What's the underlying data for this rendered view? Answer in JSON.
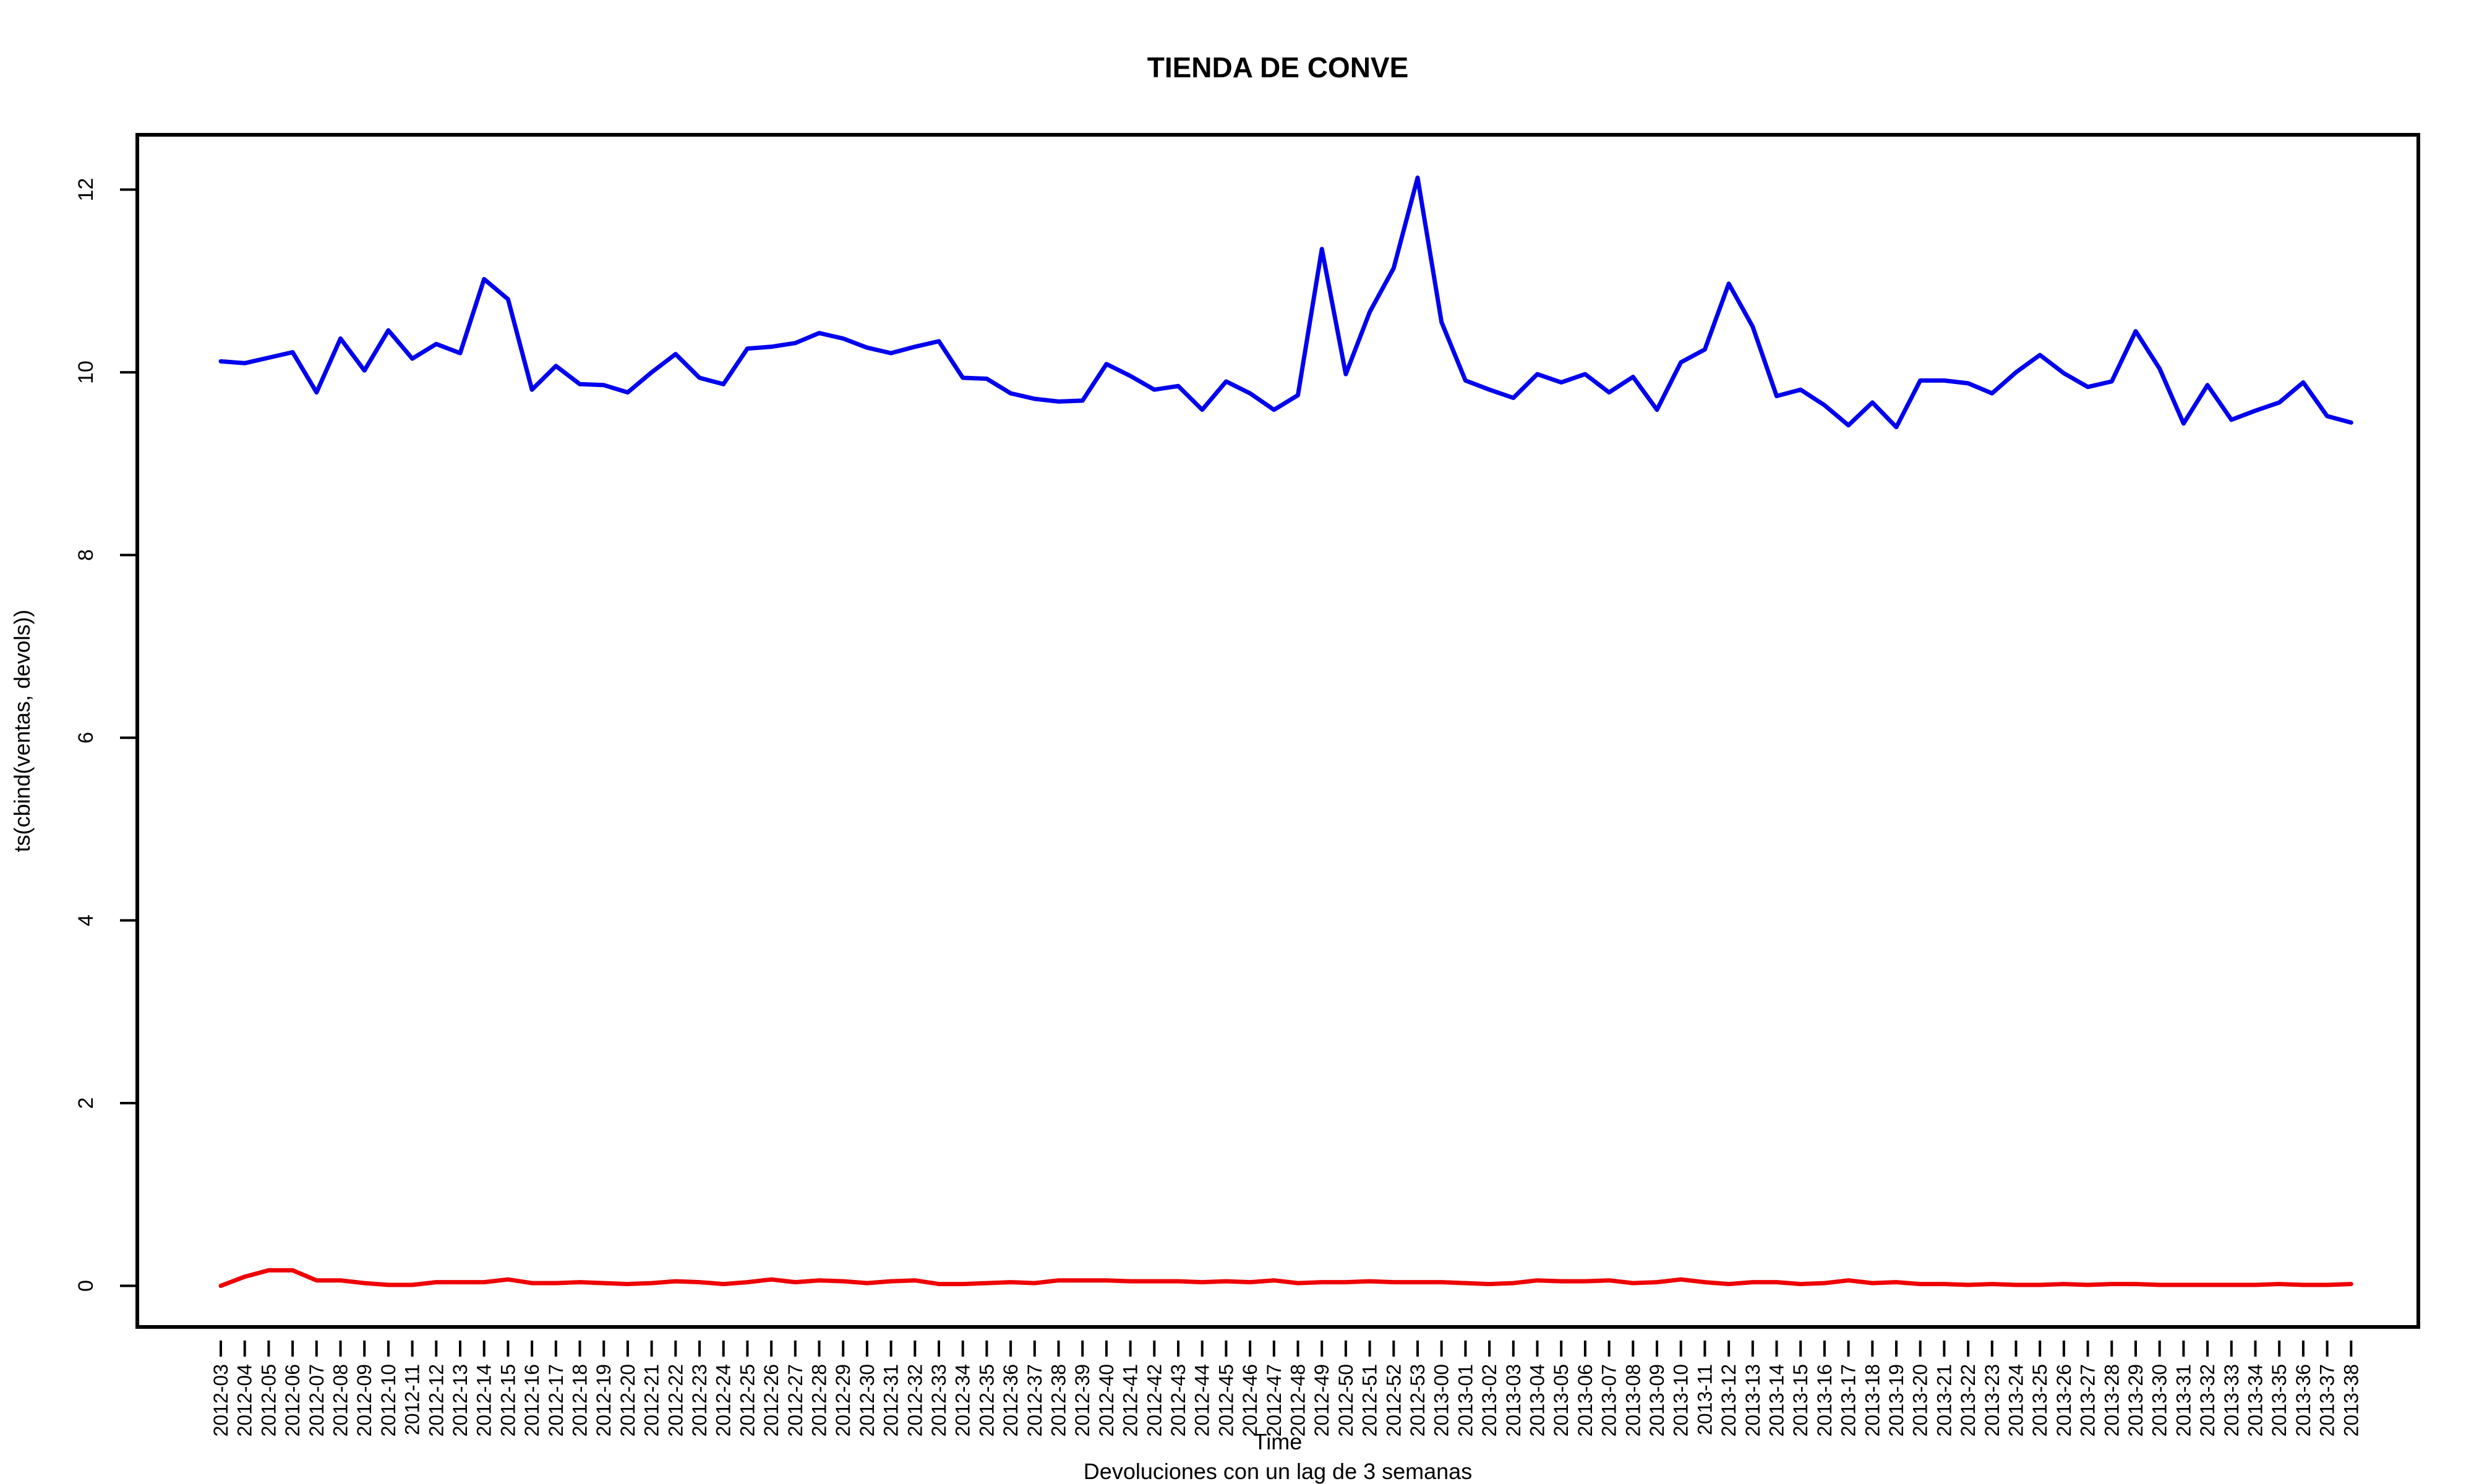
{
  "chart_data": {
    "type": "line",
    "title": "TIENDA DE CONVE",
    "xlabel": "Time",
    "ylabel": "ts(cbind(ventas, devols))",
    "subtitle": "Devoluciones con un lag de 3 semanas",
    "ylim": [
      -0.45,
      12.6
    ],
    "yticks": [
      0,
      2,
      4,
      6,
      8,
      10,
      12
    ],
    "grid": false,
    "categories": [
      "2012-03",
      "2012-04",
      "2012-05",
      "2012-06",
      "2012-07",
      "2012-08",
      "2012-09",
      "2012-10",
      "2012-11",
      "2012-12",
      "2012-13",
      "2012-14",
      "2012-15",
      "2012-16",
      "2012-17",
      "2012-18",
      "2012-19",
      "2012-20",
      "2012-21",
      "2012-22",
      "2012-23",
      "2012-24",
      "2012-25",
      "2012-26",
      "2012-27",
      "2012-28",
      "2012-29",
      "2012-30",
      "2012-31",
      "2012-32",
      "2012-33",
      "2012-34",
      "2012-35",
      "2012-36",
      "2012-37",
      "2012-38",
      "2012-39",
      "2012-40",
      "2012-41",
      "2012-42",
      "2012-43",
      "2012-44",
      "2012-45",
      "2012-46",
      "2012-47",
      "2012-48",
      "2012-49",
      "2012-50",
      "2012-51",
      "2012-52",
      "2012-53",
      "2013-00",
      "2013-01",
      "2013-02",
      "2013-03",
      "2013-04",
      "2013-05",
      "2013-06",
      "2013-07",
      "2013-08",
      "2013-09",
      "2013-10",
      "2013-11",
      "2013-12",
      "2013-13",
      "2013-14",
      "2013-15",
      "2013-16",
      "2013-17",
      "2013-18",
      "2013-19",
      "2013-20",
      "2013-21",
      "2013-22",
      "2013-23",
      "2013-24",
      "2013-25",
      "2013-26",
      "2013-27",
      "2013-28",
      "2013-29",
      "2013-30",
      "2013-31",
      "2013-32",
      "2013-33",
      "2013-34",
      "2013-35",
      "2013-36",
      "2013-37",
      "2013-38"
    ],
    "series": [
      {
        "color": "#0000ee",
        "values": [
          10.12,
          10.1,
          10.16,
          10.22,
          9.78,
          10.37,
          10.02,
          10.46,
          10.15,
          10.31,
          10.21,
          11.02,
          10.8,
          9.81,
          10.07,
          9.87,
          9.86,
          9.78,
          10.0,
          10.2,
          9.94,
          9.87,
          10.26,
          10.28,
          10.32,
          10.43,
          10.37,
          10.27,
          10.21,
          10.28,
          10.34,
          9.94,
          9.93,
          9.77,
          9.71,
          9.68,
          9.69,
          10.09,
          9.96,
          9.81,
          9.85,
          9.59,
          9.9,
          9.77,
          9.59,
          9.75,
          11.35,
          9.98,
          10.66,
          11.14,
          12.13,
          10.55,
          9.91,
          9.81,
          9.72,
          9.98,
          9.89,
          9.98,
          9.78,
          9.95,
          9.59,
          10.11,
          10.25,
          10.97,
          10.5,
          9.74,
          9.81,
          9.64,
          9.42,
          9.67,
          9.4,
          9.91,
          9.91,
          9.88,
          9.77,
          10.0,
          10.19,
          9.99,
          9.84,
          9.9,
          10.45,
          10.04,
          9.44,
          9.86,
          9.48,
          9.58,
          9.67,
          9.89,
          9.52,
          9.45
        ]
      },
      {
        "color": "#ee0000",
        "values": [
          0.0,
          0.1,
          0.17,
          0.17,
          0.06,
          0.06,
          0.03,
          0.01,
          0.01,
          0.04,
          0.04,
          0.04,
          0.07,
          0.03,
          0.03,
          0.04,
          0.03,
          0.02,
          0.03,
          0.05,
          0.04,
          0.02,
          0.04,
          0.07,
          0.04,
          0.06,
          0.05,
          0.03,
          0.05,
          0.06,
          0.02,
          0.02,
          0.03,
          0.04,
          0.03,
          0.06,
          0.06,
          0.06,
          0.05,
          0.05,
          0.05,
          0.04,
          0.05,
          0.04,
          0.06,
          0.03,
          0.04,
          0.04,
          0.05,
          0.04,
          0.04,
          0.04,
          0.03,
          0.02,
          0.03,
          0.06,
          0.05,
          0.05,
          0.06,
          0.03,
          0.04,
          0.07,
          0.04,
          0.02,
          0.04,
          0.04,
          0.02,
          0.03,
          0.06,
          0.03,
          0.04,
          0.02,
          0.02,
          0.01,
          0.02,
          0.01,
          0.01,
          0.02,
          0.01,
          0.02,
          0.02,
          0.01,
          0.01,
          0.01,
          0.01,
          0.01,
          0.02,
          0.01,
          0.01,
          0.02
        ]
      }
    ]
  }
}
